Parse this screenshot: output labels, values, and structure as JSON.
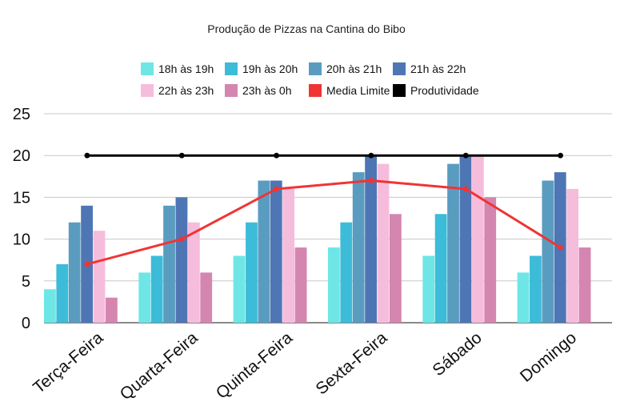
{
  "chart_data": {
    "type": "bar",
    "title": "Produção de Pizzas na Cantina do Bibo",
    "xlabel": "",
    "ylabel": "",
    "ylim": [
      0,
      25
    ],
    "yticks": [
      0,
      5,
      10,
      15,
      20,
      25
    ],
    "grid": true,
    "legend_position": "top",
    "categories": [
      "Terça-Feira",
      "Quarta-Feira",
      "Quinta-Feira",
      "Sexta-Feira",
      "Sábado",
      "Domingo"
    ],
    "series": [
      {
        "name": "18h às 19h",
        "kind": "bar",
        "color": "#6ee6e6",
        "values": [
          4,
          6,
          8,
          9,
          8,
          6
        ]
      },
      {
        "name": "19h às 20h",
        "kind": "bar",
        "color": "#3cbcd8",
        "values": [
          7,
          8,
          12,
          12,
          13,
          8
        ]
      },
      {
        "name": "20h às 21h",
        "kind": "bar",
        "color": "#5a9cc0",
        "values": [
          12,
          14,
          17,
          18,
          19,
          17
        ]
      },
      {
        "name": "21h às 22h",
        "kind": "bar",
        "color": "#4e76b4",
        "values": [
          14,
          15,
          17,
          20,
          20,
          18
        ]
      },
      {
        "name": "22h às 23h",
        "kind": "bar",
        "color": "#f6bcdc",
        "values": [
          11,
          12,
          16,
          19,
          20,
          16
        ]
      },
      {
        "name": "23h às 0h",
        "kind": "bar",
        "color": "#d486b0",
        "values": [
          3,
          6,
          9,
          13,
          15,
          9
        ]
      },
      {
        "name": "Media Limite",
        "kind": "line",
        "color": "#f03434",
        "values": [
          7,
          10,
          16,
          17,
          16,
          9
        ]
      },
      {
        "name": "Produtividade",
        "kind": "line",
        "color": "#000000",
        "values": [
          20,
          20,
          20,
          20,
          20,
          20
        ]
      }
    ]
  }
}
